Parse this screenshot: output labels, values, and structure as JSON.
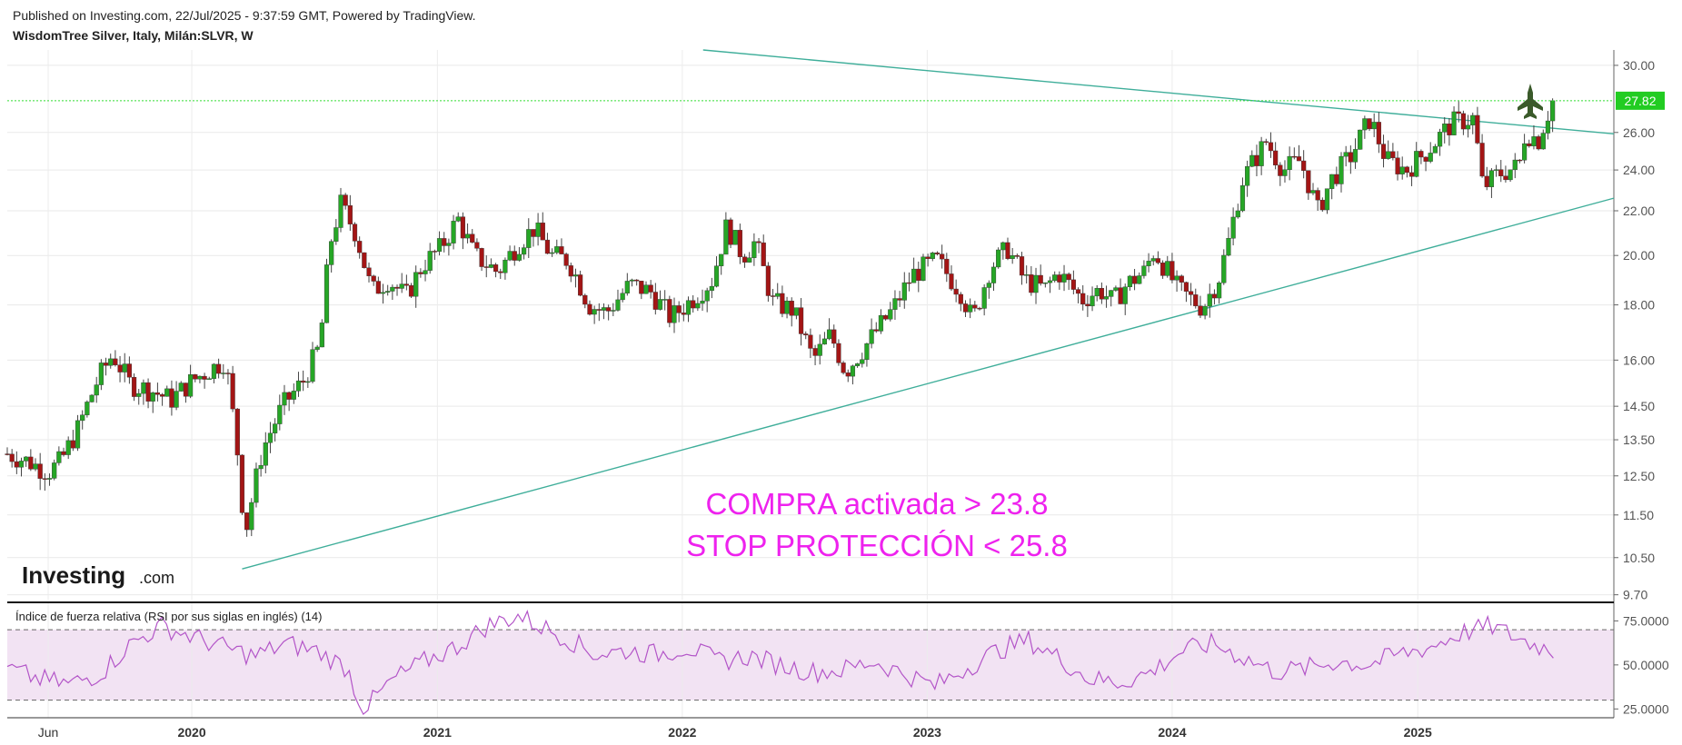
{
  "header": {
    "published": "Published on Investing.com, 22/Jul/2025 - 9:37:59 GMT, Powered by TradingView.",
    "symbol": "WisdomTree Silver, Italy, Milán:SLVR, W"
  },
  "brand": {
    "name": "Investing",
    "suffix": ".com"
  },
  "annotations": [
    "COMPRA activada > 23.8",
    "STOP PROTECCIÓN < 25.8"
  ],
  "rsi": {
    "title": "Índice de fuerza relativa (RSI por sus siglas en inglés) (14)",
    "levels": [
      30,
      70
    ]
  },
  "colors": {
    "up": "#26a626",
    "down": "#a31515",
    "trend": "#3fae9a",
    "price_line": "#33dd33",
    "rsi": "#b355c8",
    "annotation": "#ee22ee"
  },
  "chart_data": [
    {
      "type": "candlestick",
      "title": "WisdomTree Silver, Italy, Milán:SLVR, W",
      "y_scale": "log",
      "ylim": [
        9.6,
        31.0
      ],
      "x_ticks": [
        {
          "label": "Jun",
          "date": "2019-06-01"
        },
        {
          "label": "2020",
          "date": "2020-01-01"
        },
        {
          "label": "2021",
          "date": "2021-01-01"
        },
        {
          "label": "2022",
          "date": "2022-01-01"
        },
        {
          "label": "2023",
          "date": "2023-01-01"
        },
        {
          "label": "2024",
          "date": "2024-01-01"
        },
        {
          "label": "2025",
          "date": "2025-01-01"
        }
      ],
      "y_ticks": [
        "30.00",
        "26.00",
        "24.00",
        "22.00",
        "20.00",
        "18.00",
        "16.00",
        "14.50",
        "13.50",
        "12.50",
        "11.50",
        "10.50",
        "9.70"
      ],
      "last_price": "27.82",
      "price_path": [
        [
          "2019-04-01",
          13.1
        ],
        [
          "2019-05-01",
          12.9
        ],
        [
          "2019-06-01",
          12.6
        ],
        [
          "2019-06-20",
          12.9
        ],
        [
          "2019-07-15",
          13.8
        ],
        [
          "2019-08-15",
          15.4
        ],
        [
          "2019-09-05",
          16.2
        ],
        [
          "2019-10-01",
          15.2
        ],
        [
          "2019-11-01",
          15.0
        ],
        [
          "2019-12-01",
          14.7
        ],
        [
          "2020-01-01",
          15.3
        ],
        [
          "2020-02-20",
          16.0
        ],
        [
          "2020-03-10",
          13.0
        ],
        [
          "2020-03-20",
          11.0
        ],
        [
          "2020-04-15",
          13.2
        ],
        [
          "2020-05-15",
          14.5
        ],
        [
          "2020-06-15",
          15.3
        ],
        [
          "2020-07-10",
          16.5
        ],
        [
          "2020-07-25",
          20.5
        ],
        [
          "2020-08-10",
          22.3
        ],
        [
          "2020-09-01",
          21.0
        ],
        [
          "2020-09-25",
          18.5
        ],
        [
          "2020-10-20",
          19.0
        ],
        [
          "2020-11-15",
          18.3
        ],
        [
          "2020-12-10",
          19.6
        ],
        [
          "2021-01-05",
          20.3
        ],
        [
          "2021-02-01",
          21.6
        ],
        [
          "2021-02-25",
          20.0
        ],
        [
          "2021-04-01",
          19.3
        ],
        [
          "2021-05-01",
          20.5
        ],
        [
          "2021-05-25",
          21.2
        ],
        [
          "2021-06-20",
          20.0
        ],
        [
          "2021-07-15",
          19.8
        ],
        [
          "2021-08-15",
          18.0
        ],
        [
          "2021-09-10",
          17.7
        ],
        [
          "2021-10-15",
          18.8
        ],
        [
          "2021-11-15",
          18.5
        ],
        [
          "2021-12-15",
          17.5
        ],
        [
          "2022-01-15",
          18.2
        ],
        [
          "2022-02-15",
          19.0
        ],
        [
          "2022-03-08",
          21.3
        ],
        [
          "2022-04-01",
          20.0
        ],
        [
          "2022-04-20",
          20.6
        ],
        [
          "2022-05-15",
          18.1
        ],
        [
          "2022-06-15",
          17.8
        ],
        [
          "2022-07-15",
          16.0
        ],
        [
          "2022-08-10",
          16.9
        ],
        [
          "2022-09-01",
          15.6
        ],
        [
          "2022-10-01",
          16.5
        ],
        [
          "2022-11-10",
          17.8
        ],
        [
          "2022-12-10",
          19.2
        ],
        [
          "2023-01-15",
          19.8
        ],
        [
          "2023-02-20",
          18.5
        ],
        [
          "2023-03-10",
          17.4
        ],
        [
          "2023-04-05",
          19.5
        ],
        [
          "2023-05-01",
          20.3
        ],
        [
          "2023-05-25",
          19.0
        ],
        [
          "2023-06-25",
          18.6
        ],
        [
          "2023-07-15",
          19.3
        ],
        [
          "2023-08-20",
          18.2
        ],
        [
          "2023-09-15",
          18.6
        ],
        [
          "2023-10-05",
          18.1
        ],
        [
          "2023-10-25",
          18.8
        ],
        [
          "2023-11-20",
          19.3
        ],
        [
          "2023-12-05",
          20.2
        ],
        [
          "2024-01-10",
          18.6
        ],
        [
          "2024-02-15",
          17.9
        ],
        [
          "2024-03-10",
          19.0
        ],
        [
          "2024-03-25",
          20.6
        ],
        [
          "2024-04-15",
          23.5
        ],
        [
          "2024-05-20",
          25.5
        ],
        [
          "2024-06-15",
          24.0
        ],
        [
          "2024-07-10",
          24.5
        ],
        [
          "2024-08-05",
          22.0
        ],
        [
          "2024-08-25",
          23.5
        ],
        [
          "2024-09-25",
          24.8
        ],
        [
          "2024-10-22",
          26.8
        ],
        [
          "2024-11-15",
          24.5
        ],
        [
          "2024-12-15",
          24.0
        ],
        [
          "2025-01-15",
          25.0
        ],
        [
          "2025-02-20",
          26.5
        ],
        [
          "2025-03-25",
          26.8
        ],
        [
          "2025-04-08",
          23.1
        ],
        [
          "2025-05-01",
          23.8
        ],
        [
          "2025-06-01",
          24.2
        ],
        [
          "2025-06-10",
          26.0
        ],
        [
          "2025-06-30",
          25.6
        ],
        [
          "2025-07-10",
          26.7
        ],
        [
          "2025-07-22",
          27.82
        ]
      ],
      "trendlines": [
        {
          "from": [
            "2022-02-01",
            31.0
          ],
          "to": [
            "2025-07-31",
            26.2
          ]
        },
        {
          "from": [
            "2020-03-16",
            10.25
          ],
          "to": [
            "2025-07-31",
            21.9
          ]
        }
      ]
    },
    {
      "type": "line",
      "title": "Índice de fuerza relativa (RSI por sus siglas en inglés) (14)",
      "ylim": [
        20,
        85
      ],
      "y_ticks": [
        "75.0000",
        "50.0000",
        "25.0000"
      ],
      "series": [
        {
          "values": [
            [
              0,
              48
            ],
            [
              0.02,
              42
            ],
            [
              0.04,
              39
            ],
            [
              0.06,
              45
            ],
            [
              0.08,
              62
            ],
            [
              0.1,
              72
            ],
            [
              0.12,
              66
            ],
            [
              0.14,
              60
            ],
            [
              0.16,
              55
            ],
            [
              0.18,
              62
            ],
            [
              0.2,
              58
            ],
            [
              0.22,
              48
            ],
            [
              0.23,
              24
            ],
            [
              0.25,
              42
            ],
            [
              0.27,
              52
            ],
            [
              0.29,
              60
            ],
            [
              0.31,
              72
            ],
            [
              0.33,
              78
            ],
            [
              0.36,
              66
            ],
            [
              0.38,
              56
            ],
            [
              0.4,
              58
            ],
            [
              0.42,
              56
            ],
            [
              0.44,
              60
            ],
            [
              0.46,
              52
            ],
            [
              0.48,
              55
            ],
            [
              0.5,
              50
            ],
            [
              0.52,
              46
            ],
            [
              0.54,
              47
            ],
            [
              0.56,
              52
            ],
            [
              0.58,
              45
            ],
            [
              0.6,
              38
            ],
            [
              0.62,
              48
            ],
            [
              0.64,
              58
            ],
            [
              0.66,
              64
            ],
            [
              0.68,
              54
            ],
            [
              0.7,
              42
            ],
            [
              0.72,
              40
            ],
            [
              0.74,
              46
            ],
            [
              0.76,
              58
            ],
            [
              0.78,
              62
            ],
            [
              0.8,
              54
            ],
            [
              0.82,
              46
            ],
            [
              0.84,
              48
            ],
            [
              0.86,
              52
            ],
            [
              0.88,
              50
            ],
            [
              0.9,
              56
            ],
            [
              0.92,
              60
            ],
            [
              0.94,
              68
            ],
            [
              0.96,
              72
            ],
            [
              0.98,
              64
            ],
            [
              1.0,
              58
            ]
          ]
        }
      ]
    }
  ]
}
